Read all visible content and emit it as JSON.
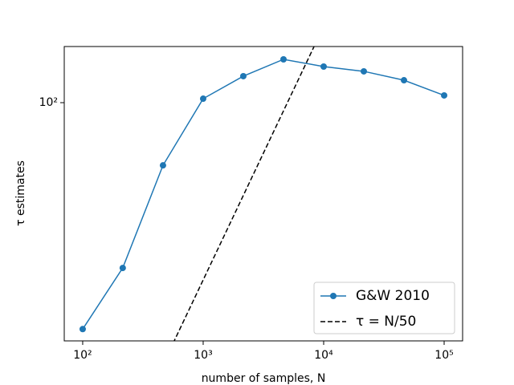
{
  "chart_data": {
    "type": "line",
    "xlabel": "number of samples, N",
    "ylabel": "τ estimates",
    "xscale": "log",
    "yscale": "log",
    "xlim": [
      70.3,
      142300
    ],
    "ylim": [
      11.5,
      166.5
    ],
    "xticks": [
      {
        "value": 100,
        "label": "10²"
      },
      {
        "value": 1000,
        "label": "10³"
      },
      {
        "value": 10000,
        "label": "10⁴"
      },
      {
        "value": 100000,
        "label": "10⁵"
      }
    ],
    "yticks": [
      {
        "value": 100,
        "label": "10²"
      }
    ],
    "legend": "lower right",
    "series": [
      {
        "name": "G&W 2010",
        "color": "#1f77b4",
        "style": "solid",
        "marker": "circle",
        "x": [
          100,
          215,
          464,
          1000,
          2154,
          4642,
          10000,
          21544,
          46416,
          100000
        ],
        "values": [
          12.8,
          22.3,
          56.6,
          103.7,
          127.2,
          148.2,
          138.8,
          132.9,
          122.6,
          106.8
        ]
      },
      {
        "name": "τ = N/50",
        "color": "#000000",
        "style": "dashed",
        "x": [
          500,
          10000
        ],
        "values": [
          10,
          200
        ]
      }
    ]
  }
}
